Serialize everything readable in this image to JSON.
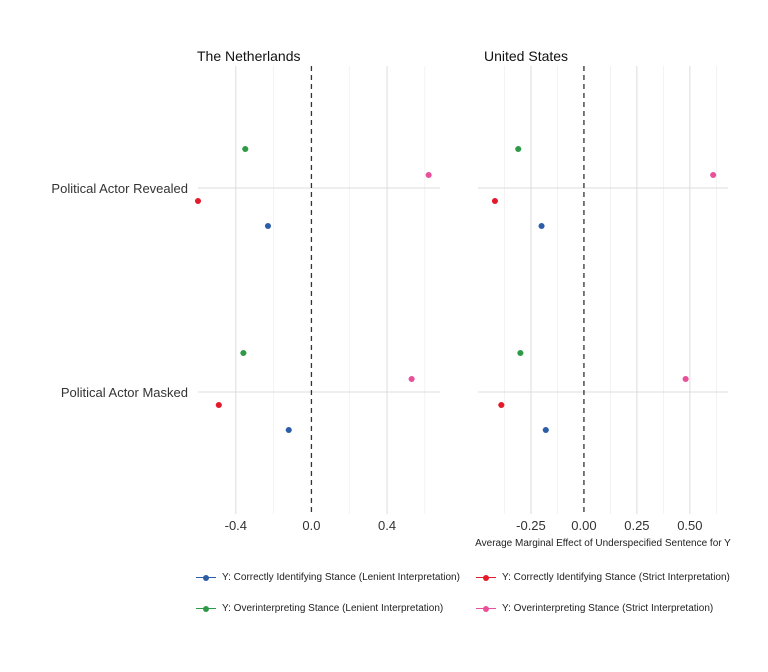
{
  "chart_data": {
    "type": "scatter",
    "x_axis_title": "Average Marginal Effect of Underspecified Sentence for Y",
    "categories": [
      "Political Actor Revealed",
      "Political Actor Masked"
    ],
    "panels": [
      {
        "title": "The Netherlands",
        "xlim": [
          -0.6,
          0.68
        ],
        "xticks": [
          -0.4,
          0.0,
          0.4
        ],
        "xtick_labels": [
          "-0.4",
          "0.0",
          "0.4"
        ],
        "series": [
          {
            "name": "Y: Correctly Identifying Stance (Lenient Interpretation)",
            "values": [
              -0.23,
              -0.12
            ]
          },
          {
            "name": "Y: Correctly Identifying Stance (Strict Interpretation)",
            "values": [
              -0.6,
              -0.49
            ]
          },
          {
            "name": "Y: Overinterpreting Stance (Lenient Interpretation)",
            "values": [
              -0.35,
              -0.36
            ]
          },
          {
            "name": "Y: Overinterpreting Stance (Strict Interpretation)",
            "values": [
              0.62,
              0.53
            ]
          }
        ]
      },
      {
        "title": "United States",
        "xlim": [
          -0.5,
          0.68
        ],
        "xticks": [
          -0.25,
          0.0,
          0.25,
          0.5
        ],
        "xtick_labels": [
          "-0.25",
          "0.00",
          "0.25",
          "0.50"
        ],
        "series": [
          {
            "name": "Y: Correctly Identifying Stance (Lenient Interpretation)",
            "values": [
              -0.2,
              -0.18
            ]
          },
          {
            "name": "Y: Correctly Identifying Stance (Strict Interpretation)",
            "values": [
              -0.42,
              -0.39
            ]
          },
          {
            "name": "Y: Overinterpreting Stance (Lenient Interpretation)",
            "values": [
              -0.31,
              -0.3
            ]
          },
          {
            "name": "Y: Overinterpreting Stance (Strict Interpretation)",
            "values": [
              0.61,
              0.48
            ]
          }
        ]
      }
    ],
    "colors": [
      "#2b5ea7",
      "#e41a2a",
      "#2e9a48",
      "#e8509a"
    ],
    "reference_line": 0,
    "grid": true,
    "legend_position": "bottom"
  }
}
